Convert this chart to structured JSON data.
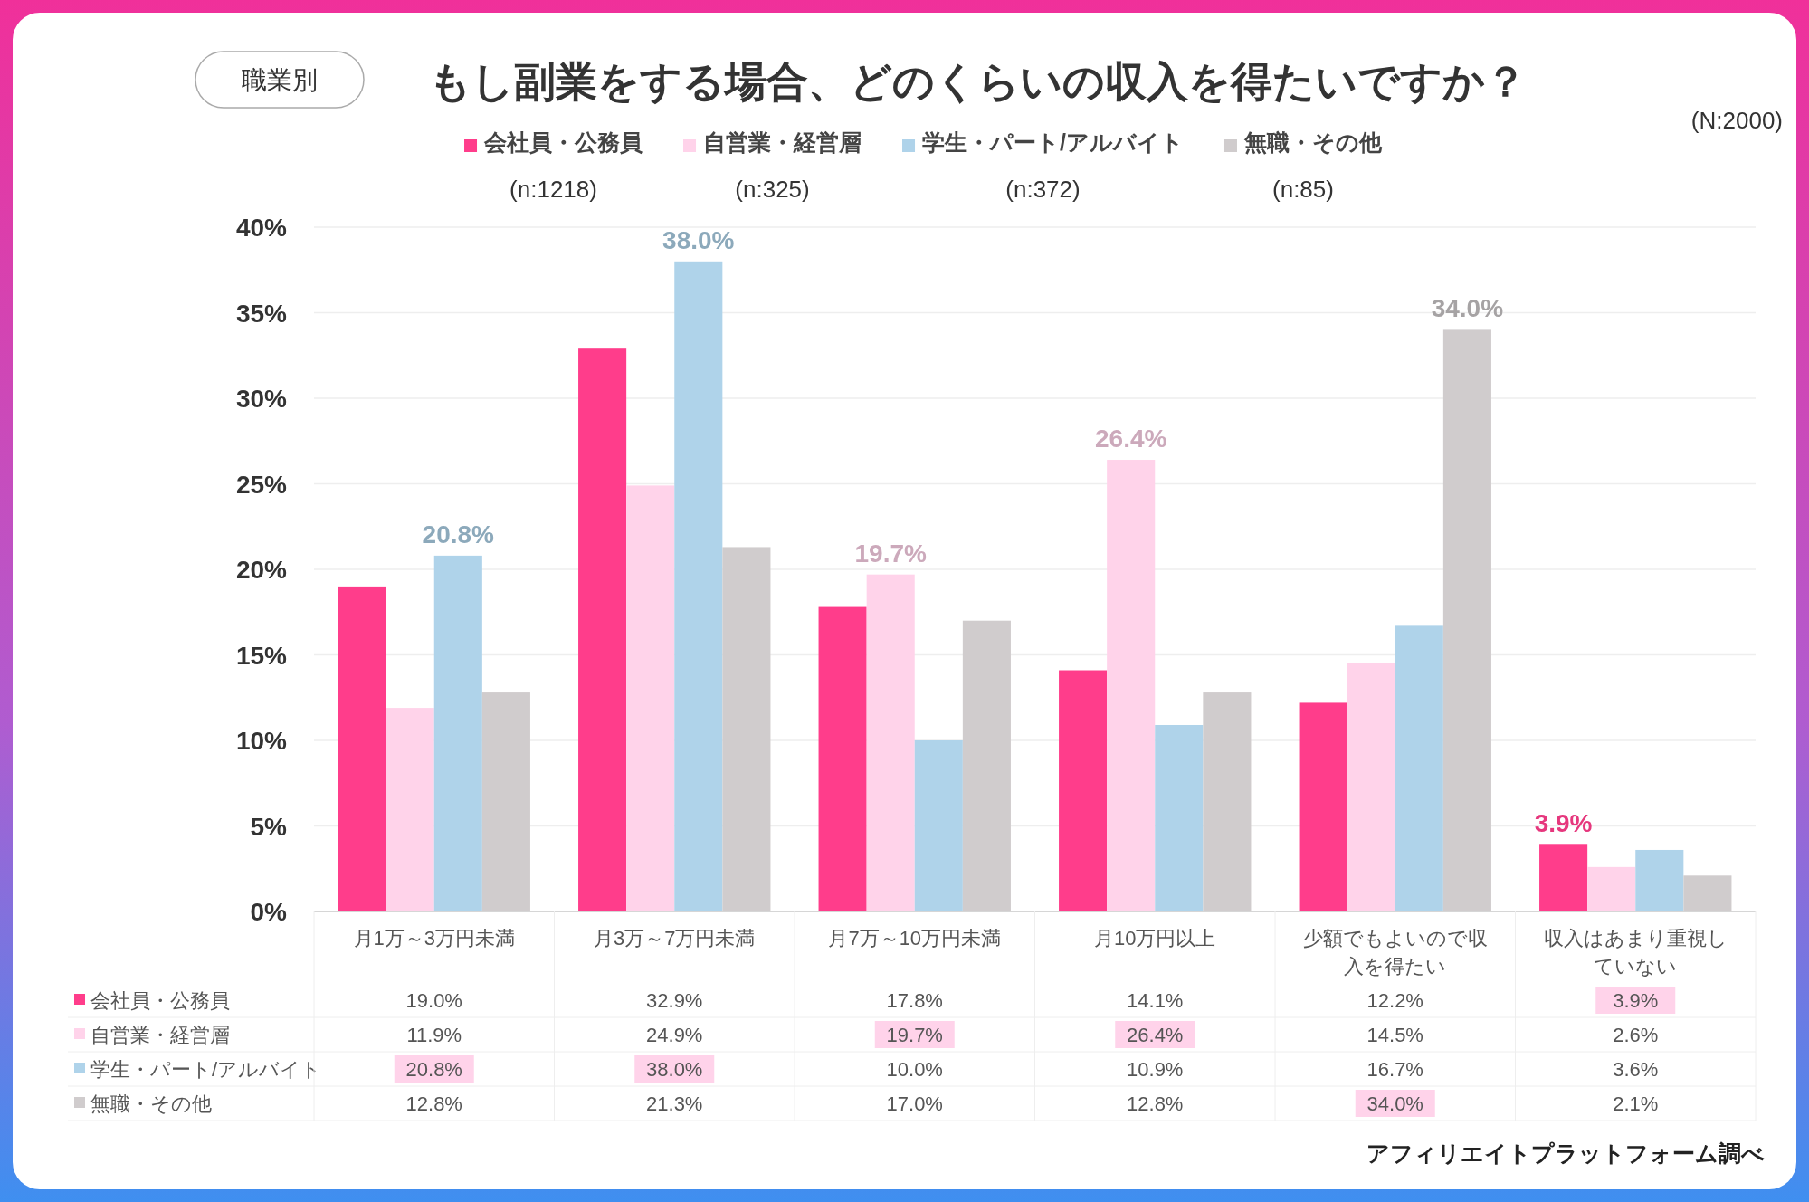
{
  "chart_data": [
    {
      "type": "bar",
      "title": "もし副業をする場合、どのくらいの収入を得たいですか？",
      "subtitle": "職業別",
      "categories": [
        "月1万～3万円未満",
        "月3万～7万円未満",
        "月7万～10万円未満",
        "月10万円以上",
        "少額でもよいので収入を得たい",
        "収入はあまり重視していない"
      ],
      "series": [
        {
          "name": "会社員・公務員",
          "color": "#ff3d8b",
          "values": [
            19.0,
            32.9,
            17.8,
            14.1,
            12.2,
            3.9
          ],
          "value_labels": [
            null,
            null,
            null,
            null,
            null,
            "3.9%"
          ]
        },
        {
          "name": "自営業・経営層",
          "color": "#ffd3ea",
          "values": [
            11.9,
            24.9,
            19.7,
            26.4,
            14.5,
            2.6
          ],
          "value_labels": [
            null,
            null,
            "19.7%",
            "26.4%",
            null,
            null
          ]
        },
        {
          "name": "学生・パート/アルバイト",
          "color": "#afd3ea",
          "values": [
            20.8,
            38.0,
            10.0,
            10.9,
            16.7,
            3.6
          ],
          "value_labels": [
            "20.8%",
            "38.0%",
            null,
            null,
            null,
            null
          ]
        },
        {
          "name": "無職・その他",
          "color": "#d0cccd",
          "values": [
            12.8,
            21.3,
            17.0,
            12.8,
            34.0,
            2.1
          ],
          "value_labels": [
            null,
            null,
            null,
            null,
            "34.0%",
            null
          ]
        }
      ],
      "ylim": [
        0,
        40
      ],
      "yticks": [
        {
          "value": 0,
          "label": "0%"
        },
        {
          "value": 5,
          "label": "5%"
        },
        {
          "value": 10,
          "label": "10%"
        },
        {
          "value": 15,
          "label": "15%"
        },
        {
          "value": 20,
          "label": "20%"
        },
        {
          "value": 25,
          "label": "25%"
        },
        {
          "value": 30,
          "label": "30%"
        },
        {
          "value": 35,
          "label": "35%"
        },
        {
          "value": 40,
          "label": "40%"
        }
      ],
      "grid": "y",
      "legend": "top",
      "annotations": [
        "(N:2000)",
        "(n:1218)",
        "(n:325)",
        "(n:372)",
        "(n:85)",
        "アフィリエイトプラットフォーム調べ"
      ]
    },
    {
      "type": "other",
      "y_categories": [
        "会社員・公務員",
        "自営業・経営層",
        "学生・パート/アルバイト",
        "無職・その他"
      ],
      "cell_labels": [
        [
          "19.0%",
          "32.9%",
          "17.8%",
          "14.1%",
          "12.2%",
          "3.9%"
        ],
        [
          "11.9%",
          "24.9%",
          "19.7%",
          "26.4%",
          "14.5%",
          "2.6%"
        ],
        [
          "20.8%",
          "38.0%",
          "10.0%",
          "10.9%",
          "16.7%",
          "3.6%"
        ],
        [
          "12.8%",
          "21.3%",
          "17.0%",
          "12.8%",
          "34.0%",
          "2.1%"
        ]
      ]
    }
  ]
}
